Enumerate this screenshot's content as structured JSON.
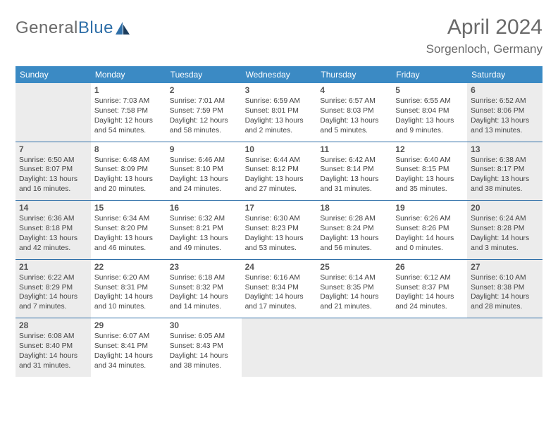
{
  "header": {
    "logo_text_1": "General",
    "logo_text_2": "Blue",
    "month_title": "April 2024",
    "location": "Sorgenloch, Germany"
  },
  "colors": {
    "header_bg": "#3b8ac4",
    "row_divider": "#2f6fa8",
    "shaded_bg": "#ececec",
    "text": "#4a4a4a",
    "logo_blue": "#2f6fa8",
    "logo_dark": "#1a3b5c"
  },
  "dow": [
    "Sunday",
    "Monday",
    "Tuesday",
    "Wednesday",
    "Thursday",
    "Friday",
    "Saturday"
  ],
  "weeks": [
    [
      {
        "num": "",
        "shaded": true,
        "sunrise": "",
        "sunset": "",
        "daylight1": "",
        "daylight2": ""
      },
      {
        "num": "1",
        "shaded": false,
        "sunrise": "Sunrise: 7:03 AM",
        "sunset": "Sunset: 7:58 PM",
        "daylight1": "Daylight: 12 hours",
        "daylight2": "and 54 minutes."
      },
      {
        "num": "2",
        "shaded": false,
        "sunrise": "Sunrise: 7:01 AM",
        "sunset": "Sunset: 7:59 PM",
        "daylight1": "Daylight: 12 hours",
        "daylight2": "and 58 minutes."
      },
      {
        "num": "3",
        "shaded": false,
        "sunrise": "Sunrise: 6:59 AM",
        "sunset": "Sunset: 8:01 PM",
        "daylight1": "Daylight: 13 hours",
        "daylight2": "and 2 minutes."
      },
      {
        "num": "4",
        "shaded": false,
        "sunrise": "Sunrise: 6:57 AM",
        "sunset": "Sunset: 8:03 PM",
        "daylight1": "Daylight: 13 hours",
        "daylight2": "and 5 minutes."
      },
      {
        "num": "5",
        "shaded": false,
        "sunrise": "Sunrise: 6:55 AM",
        "sunset": "Sunset: 8:04 PM",
        "daylight1": "Daylight: 13 hours",
        "daylight2": "and 9 minutes."
      },
      {
        "num": "6",
        "shaded": true,
        "sunrise": "Sunrise: 6:52 AM",
        "sunset": "Sunset: 8:06 PM",
        "daylight1": "Daylight: 13 hours",
        "daylight2": "and 13 minutes."
      }
    ],
    [
      {
        "num": "7",
        "shaded": true,
        "sunrise": "Sunrise: 6:50 AM",
        "sunset": "Sunset: 8:07 PM",
        "daylight1": "Daylight: 13 hours",
        "daylight2": "and 16 minutes."
      },
      {
        "num": "8",
        "shaded": false,
        "sunrise": "Sunrise: 6:48 AM",
        "sunset": "Sunset: 8:09 PM",
        "daylight1": "Daylight: 13 hours",
        "daylight2": "and 20 minutes."
      },
      {
        "num": "9",
        "shaded": false,
        "sunrise": "Sunrise: 6:46 AM",
        "sunset": "Sunset: 8:10 PM",
        "daylight1": "Daylight: 13 hours",
        "daylight2": "and 24 minutes."
      },
      {
        "num": "10",
        "shaded": false,
        "sunrise": "Sunrise: 6:44 AM",
        "sunset": "Sunset: 8:12 PM",
        "daylight1": "Daylight: 13 hours",
        "daylight2": "and 27 minutes."
      },
      {
        "num": "11",
        "shaded": false,
        "sunrise": "Sunrise: 6:42 AM",
        "sunset": "Sunset: 8:14 PM",
        "daylight1": "Daylight: 13 hours",
        "daylight2": "and 31 minutes."
      },
      {
        "num": "12",
        "shaded": false,
        "sunrise": "Sunrise: 6:40 AM",
        "sunset": "Sunset: 8:15 PM",
        "daylight1": "Daylight: 13 hours",
        "daylight2": "and 35 minutes."
      },
      {
        "num": "13",
        "shaded": true,
        "sunrise": "Sunrise: 6:38 AM",
        "sunset": "Sunset: 8:17 PM",
        "daylight1": "Daylight: 13 hours",
        "daylight2": "and 38 minutes."
      }
    ],
    [
      {
        "num": "14",
        "shaded": true,
        "sunrise": "Sunrise: 6:36 AM",
        "sunset": "Sunset: 8:18 PM",
        "daylight1": "Daylight: 13 hours",
        "daylight2": "and 42 minutes."
      },
      {
        "num": "15",
        "shaded": false,
        "sunrise": "Sunrise: 6:34 AM",
        "sunset": "Sunset: 8:20 PM",
        "daylight1": "Daylight: 13 hours",
        "daylight2": "and 46 minutes."
      },
      {
        "num": "16",
        "shaded": false,
        "sunrise": "Sunrise: 6:32 AM",
        "sunset": "Sunset: 8:21 PM",
        "daylight1": "Daylight: 13 hours",
        "daylight2": "and 49 minutes."
      },
      {
        "num": "17",
        "shaded": false,
        "sunrise": "Sunrise: 6:30 AM",
        "sunset": "Sunset: 8:23 PM",
        "daylight1": "Daylight: 13 hours",
        "daylight2": "and 53 minutes."
      },
      {
        "num": "18",
        "shaded": false,
        "sunrise": "Sunrise: 6:28 AM",
        "sunset": "Sunset: 8:24 PM",
        "daylight1": "Daylight: 13 hours",
        "daylight2": "and 56 minutes."
      },
      {
        "num": "19",
        "shaded": false,
        "sunrise": "Sunrise: 6:26 AM",
        "sunset": "Sunset: 8:26 PM",
        "daylight1": "Daylight: 14 hours",
        "daylight2": "and 0 minutes."
      },
      {
        "num": "20",
        "shaded": true,
        "sunrise": "Sunrise: 6:24 AM",
        "sunset": "Sunset: 8:28 PM",
        "daylight1": "Daylight: 14 hours",
        "daylight2": "and 3 minutes."
      }
    ],
    [
      {
        "num": "21",
        "shaded": true,
        "sunrise": "Sunrise: 6:22 AM",
        "sunset": "Sunset: 8:29 PM",
        "daylight1": "Daylight: 14 hours",
        "daylight2": "and 7 minutes."
      },
      {
        "num": "22",
        "shaded": false,
        "sunrise": "Sunrise: 6:20 AM",
        "sunset": "Sunset: 8:31 PM",
        "daylight1": "Daylight: 14 hours",
        "daylight2": "and 10 minutes."
      },
      {
        "num": "23",
        "shaded": false,
        "sunrise": "Sunrise: 6:18 AM",
        "sunset": "Sunset: 8:32 PM",
        "daylight1": "Daylight: 14 hours",
        "daylight2": "and 14 minutes."
      },
      {
        "num": "24",
        "shaded": false,
        "sunrise": "Sunrise: 6:16 AM",
        "sunset": "Sunset: 8:34 PM",
        "daylight1": "Daylight: 14 hours",
        "daylight2": "and 17 minutes."
      },
      {
        "num": "25",
        "shaded": false,
        "sunrise": "Sunrise: 6:14 AM",
        "sunset": "Sunset: 8:35 PM",
        "daylight1": "Daylight: 14 hours",
        "daylight2": "and 21 minutes."
      },
      {
        "num": "26",
        "shaded": false,
        "sunrise": "Sunrise: 6:12 AM",
        "sunset": "Sunset: 8:37 PM",
        "daylight1": "Daylight: 14 hours",
        "daylight2": "and 24 minutes."
      },
      {
        "num": "27",
        "shaded": true,
        "sunrise": "Sunrise: 6:10 AM",
        "sunset": "Sunset: 8:38 PM",
        "daylight1": "Daylight: 14 hours",
        "daylight2": "and 28 minutes."
      }
    ],
    [
      {
        "num": "28",
        "shaded": true,
        "sunrise": "Sunrise: 6:08 AM",
        "sunset": "Sunset: 8:40 PM",
        "daylight1": "Daylight: 14 hours",
        "daylight2": "and 31 minutes."
      },
      {
        "num": "29",
        "shaded": false,
        "sunrise": "Sunrise: 6:07 AM",
        "sunset": "Sunset: 8:41 PM",
        "daylight1": "Daylight: 14 hours",
        "daylight2": "and 34 minutes."
      },
      {
        "num": "30",
        "shaded": false,
        "sunrise": "Sunrise: 6:05 AM",
        "sunset": "Sunset: 8:43 PM",
        "daylight1": "Daylight: 14 hours",
        "daylight2": "and 38 minutes."
      },
      {
        "num": "",
        "shaded": true,
        "sunrise": "",
        "sunset": "",
        "daylight1": "",
        "daylight2": ""
      },
      {
        "num": "",
        "shaded": true,
        "sunrise": "",
        "sunset": "",
        "daylight1": "",
        "daylight2": ""
      },
      {
        "num": "",
        "shaded": true,
        "sunrise": "",
        "sunset": "",
        "daylight1": "",
        "daylight2": ""
      },
      {
        "num": "",
        "shaded": true,
        "sunrise": "",
        "sunset": "",
        "daylight1": "",
        "daylight2": ""
      }
    ]
  ]
}
